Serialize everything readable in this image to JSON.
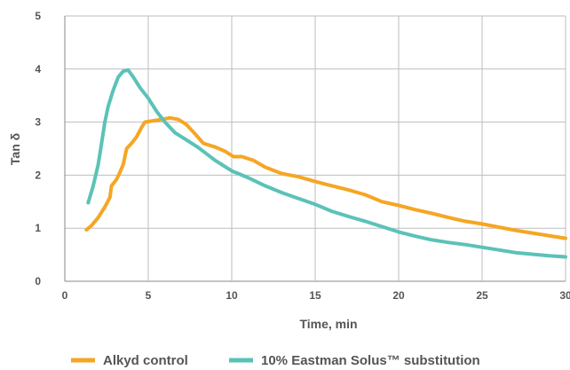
{
  "chart_data": {
    "type": "line",
    "title": "",
    "xlabel": "Time, min",
    "ylabel": "Tan δ",
    "xlim": [
      0,
      30
    ],
    "ylim": [
      0,
      5
    ],
    "x_ticks": [
      0,
      5,
      10,
      15,
      20,
      25,
      30
    ],
    "y_ticks": [
      0,
      1,
      2,
      3,
      4,
      5
    ],
    "grid": true,
    "legend_position": "bottom",
    "series": [
      {
        "name": "Alkyd control",
        "color": "#f5a623",
        "points": [
          [
            1.3,
            0.97
          ],
          [
            1.6,
            1.05
          ],
          [
            2.0,
            1.2
          ],
          [
            2.4,
            1.4
          ],
          [
            2.7,
            1.58
          ],
          [
            2.8,
            1.8
          ],
          [
            3.1,
            1.92
          ],
          [
            3.3,
            2.05
          ],
          [
            3.5,
            2.2
          ],
          [
            3.7,
            2.5
          ],
          [
            4.0,
            2.6
          ],
          [
            4.3,
            2.72
          ],
          [
            4.6,
            2.9
          ],
          [
            4.8,
            3.0
          ],
          [
            5.2,
            3.02
          ],
          [
            5.8,
            3.05
          ],
          [
            6.3,
            3.08
          ],
          [
            6.8,
            3.05
          ],
          [
            7.3,
            2.95
          ],
          [
            7.8,
            2.78
          ],
          [
            8.3,
            2.6
          ],
          [
            9.0,
            2.53
          ],
          [
            9.6,
            2.45
          ],
          [
            10.1,
            2.35
          ],
          [
            10.6,
            2.35
          ],
          [
            11.3,
            2.28
          ],
          [
            12.0,
            2.15
          ],
          [
            13.0,
            2.03
          ],
          [
            14.0,
            1.97
          ],
          [
            15.0,
            1.88
          ],
          [
            16.0,
            1.8
          ],
          [
            17.0,
            1.72
          ],
          [
            18.0,
            1.63
          ],
          [
            19.0,
            1.5
          ],
          [
            20.0,
            1.43
          ],
          [
            21.0,
            1.35
          ],
          [
            22.0,
            1.28
          ],
          [
            23.0,
            1.2
          ],
          [
            24.0,
            1.13
          ],
          [
            25.0,
            1.08
          ],
          [
            26.0,
            1.02
          ],
          [
            27.0,
            0.96
          ],
          [
            28.0,
            0.91
          ],
          [
            29.0,
            0.86
          ],
          [
            30.0,
            0.81
          ]
        ]
      },
      {
        "name": "10% Eastman Solus™ substitution",
        "color": "#5bc2b8",
        "points": [
          [
            1.4,
            1.48
          ],
          [
            1.7,
            1.8
          ],
          [
            2.0,
            2.2
          ],
          [
            2.2,
            2.6
          ],
          [
            2.4,
            3.0
          ],
          [
            2.6,
            3.3
          ],
          [
            2.9,
            3.6
          ],
          [
            3.2,
            3.85
          ],
          [
            3.5,
            3.96
          ],
          [
            3.8,
            3.98
          ],
          [
            4.1,
            3.85
          ],
          [
            4.5,
            3.65
          ],
          [
            5.0,
            3.45
          ],
          [
            5.5,
            3.2
          ],
          [
            6.0,
            3.0
          ],
          [
            6.6,
            2.8
          ],
          [
            7.2,
            2.68
          ],
          [
            8.0,
            2.52
          ],
          [
            9.0,
            2.28
          ],
          [
            10.0,
            2.08
          ],
          [
            11.0,
            1.95
          ],
          [
            12.0,
            1.8
          ],
          [
            13.0,
            1.67
          ],
          [
            14.0,
            1.56
          ],
          [
            15.0,
            1.45
          ],
          [
            16.0,
            1.32
          ],
          [
            17.0,
            1.22
          ],
          [
            18.0,
            1.13
          ],
          [
            19.0,
            1.03
          ],
          [
            20.0,
            0.93
          ],
          [
            21.0,
            0.85
          ],
          [
            22.0,
            0.78
          ],
          [
            23.0,
            0.73
          ],
          [
            24.0,
            0.69
          ],
          [
            25.0,
            0.64
          ],
          [
            26.0,
            0.59
          ],
          [
            27.0,
            0.54
          ],
          [
            28.0,
            0.51
          ],
          [
            29.0,
            0.48
          ],
          [
            30.0,
            0.46
          ]
        ]
      }
    ]
  }
}
